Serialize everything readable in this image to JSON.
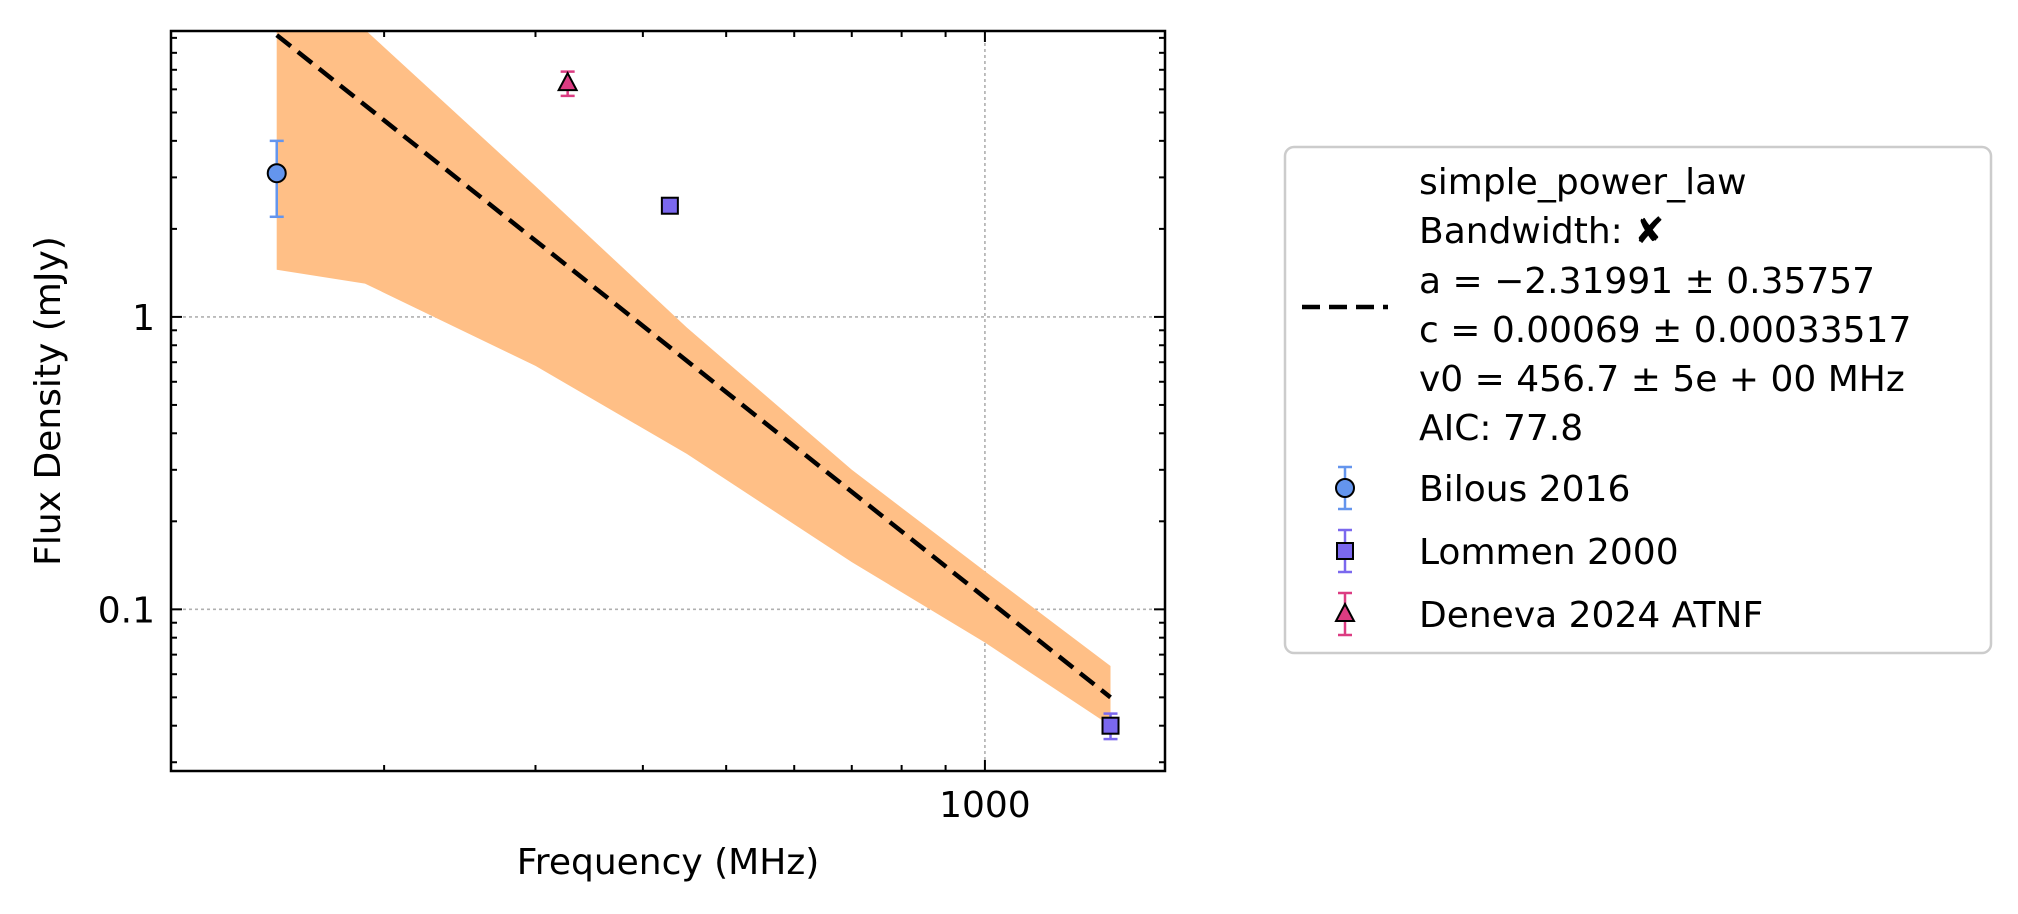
{
  "chart_data": {
    "type": "scatter",
    "xlabel": "Frequency (MHz)",
    "ylabel": "Flux Density (mJy)",
    "x_scale": "log",
    "y_scale": "log",
    "xlim": [
      113,
      1620
    ],
    "ylim": [
      0.028,
      9.5
    ],
    "grid": true,
    "x_ticks": [
      {
        "value": 1000,
        "label": "1000"
      }
    ],
    "y_ticks": [
      {
        "value": 0.1,
        "label": "0.1"
      },
      {
        "value": 1,
        "label": "1"
      }
    ],
    "legend_position": "outside-right",
    "fit": {
      "model": "simple_power_law",
      "lines": [
        "simple_power_law",
        "Bandwidth: ✘",
        "a = −2.31991 ± 0.35757",
        "c = 0.00069 ± 0.00033517",
        "v0 = 456.7 ± 5e + 00 MHz",
        "AIC: 77.8"
      ],
      "line_color": "#000000",
      "band_color": "#ffbf86",
      "line": {
        "x": [
          150,
          1400
        ],
        "y": [
          9.2,
          0.05
        ]
      },
      "band": {
        "x": [
          150,
          190,
          300,
          450,
          700,
          1000,
          1400
        ],
        "upper": [
          20.0,
          9.6,
          2.8,
          0.92,
          0.3,
          0.135,
          0.064
        ],
        "lower": [
          1.45,
          1.3,
          0.68,
          0.34,
          0.145,
          0.077,
          0.04
        ]
      }
    },
    "series": [
      {
        "name": "Bilous 2016",
        "marker": "circle",
        "color": "#6495ed",
        "points": [
          {
            "x": 150,
            "y": 3.1,
            "yerr_low": 0.9,
            "yerr_high": 0.9
          }
        ]
      },
      {
        "name": "Lommen 2000",
        "marker": "square",
        "color": "#7b68ee",
        "points": [
          {
            "x": 430,
            "y": 2.4,
            "yerr_low": 0.0,
            "yerr_high": 0.0
          },
          {
            "x": 1400,
            "y": 0.04,
            "yerr_low": 0.004,
            "yerr_high": 0.004
          }
        ]
      },
      {
        "name": "Deneva 2024 ATNF",
        "marker": "triangle",
        "color": "#dc3c82",
        "points": [
          {
            "x": 327,
            "y": 6.3,
            "yerr_low": 0.6,
            "yerr_high": 0.6
          }
        ]
      }
    ]
  }
}
